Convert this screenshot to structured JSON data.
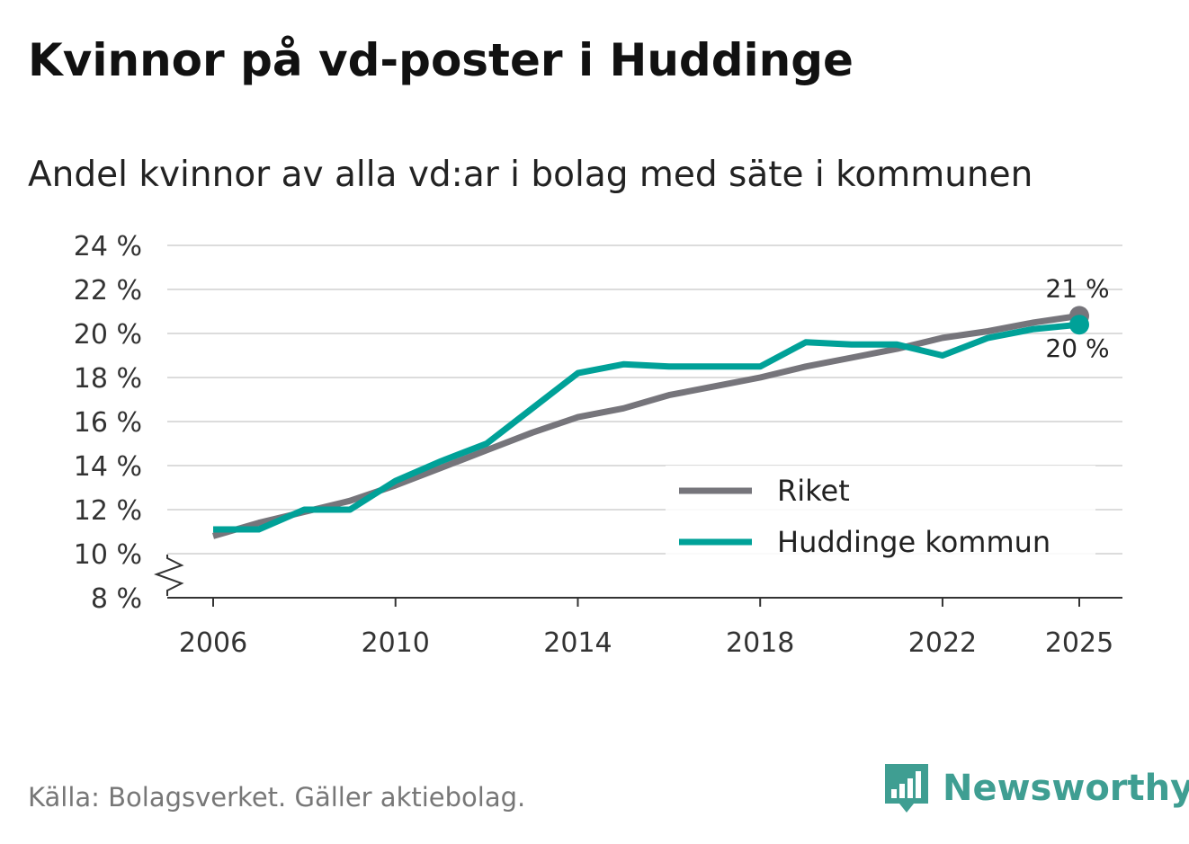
{
  "title": "Kvinnor på vd-poster i Huddinge",
  "subtitle": "Andel kvinnor av alla vd:ar i bolag med säte i kommunen",
  "source": "Källa: Bolagsverket. Gäller aktiebolag.",
  "brand": {
    "name": "Newsworthy",
    "icon": "newsworthy-logo-icon",
    "color": "#3f9e92"
  },
  "chart_data": {
    "type": "line",
    "title": "Kvinnor på vd-poster i Huddinge",
    "subtitle": "Andel kvinnor av alla vd:ar i bolag med säte i kommunen",
    "xlabel": "",
    "ylabel": "",
    "x": [
      2006,
      2007,
      2008,
      2009,
      2010,
      2011,
      2012,
      2013,
      2014,
      2015,
      2016,
      2017,
      2018,
      2019,
      2020,
      2021,
      2022,
      2023,
      2024,
      2025
    ],
    "xticks": [
      2006,
      2010,
      2014,
      2018,
      2022,
      2025
    ],
    "xtick_labels": [
      "2006",
      "2010",
      "2014",
      "2018",
      "2022",
      "2025"
    ],
    "ylim": [
      8,
      24
    ],
    "yticks": [
      8,
      10,
      12,
      14,
      16,
      18,
      20,
      22,
      24
    ],
    "ytick_labels": [
      "8 %",
      "10 %",
      "12 %",
      "14 %",
      "16 %",
      "18 %",
      "20 %",
      "22 %",
      "24 %"
    ],
    "axis_break": true,
    "grid": true,
    "legend_position": "bottom-right",
    "series": [
      {
        "name": "Riket",
        "color": "#76757b",
        "values": [
          10.8,
          11.4,
          11.9,
          12.4,
          13.1,
          13.9,
          14.7,
          15.5,
          16.2,
          16.6,
          17.2,
          17.6,
          18.0,
          18.5,
          18.9,
          19.3,
          19.8,
          20.1,
          20.5,
          20.8
        ],
        "end_label": "21 %"
      },
      {
        "name": "Huddinge kommun",
        "color": "#00a198",
        "values": [
          11.1,
          11.1,
          12.0,
          12.0,
          13.3,
          14.2,
          15.0,
          16.6,
          18.2,
          18.6,
          18.5,
          18.5,
          18.5,
          19.6,
          19.5,
          19.5,
          19.0,
          19.8,
          20.2,
          20.4
        ],
        "end_label": "20 %"
      }
    ]
  }
}
